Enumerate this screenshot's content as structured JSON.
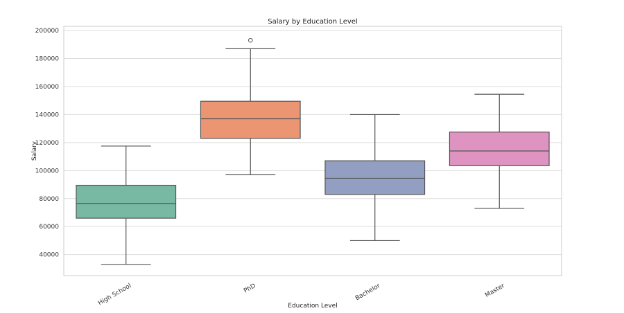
{
  "chart_data": {
    "type": "box",
    "title": "Salary by Education Level",
    "xlabel": "Education Level",
    "ylabel": "Salary",
    "ylim": [
      25000,
      203000
    ],
    "yticks": [
      40000,
      60000,
      80000,
      100000,
      120000,
      140000,
      160000,
      180000,
      200000
    ],
    "ytick_labels": [
      "40000",
      "60000",
      "80000",
      "100000",
      "120000",
      "140000",
      "160000",
      "180000",
      "200000"
    ],
    "grid": true,
    "categories": [
      "High School",
      "PhD",
      "Bachelor",
      "Master"
    ],
    "boxes": [
      {
        "category": "High School",
        "whisker_low": 33000,
        "q1": 66000,
        "median": 76500,
        "q3": 89500,
        "whisker_high": 117500,
        "outliers": [],
        "color": "#77b9a3"
      },
      {
        "category": "PhD",
        "whisker_low": 97000,
        "q1": 123000,
        "median": 137000,
        "q3": 149500,
        "whisker_high": 187000,
        "outliers": [
          193000
        ],
        "color": "#eb9573"
      },
      {
        "category": "Bachelor",
        "whisker_low": 50000,
        "q1": 83000,
        "median": 94500,
        "q3": 107000,
        "whisker_high": 140000,
        "outliers": [],
        "color": "#929fc2"
      },
      {
        "category": "Master",
        "whisker_low": 73000,
        "q1": 103500,
        "median": 114000,
        "q3": 127500,
        "whisker_high": 154500,
        "outliers": [],
        "color": "#de93c1"
      }
    ]
  },
  "colors": {
    "grid": "#dddddd",
    "frame": "#cccccc",
    "line": "#555555",
    "text": "#333333"
  }
}
